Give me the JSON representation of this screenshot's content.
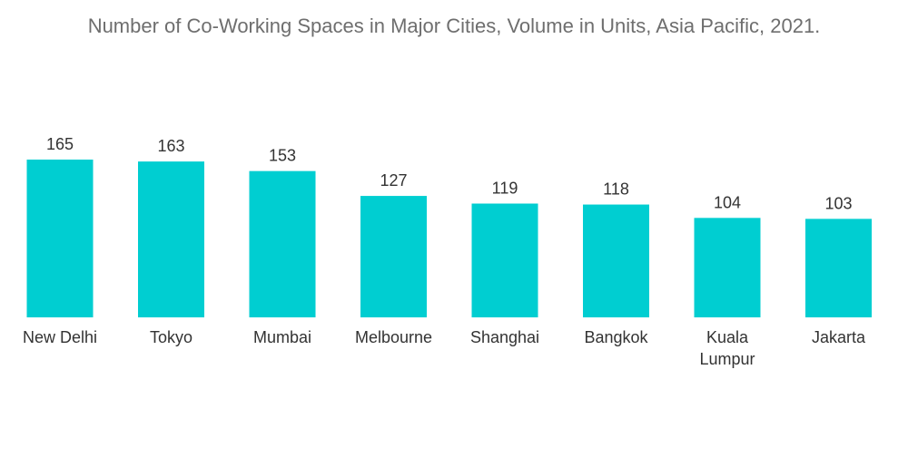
{
  "chart_data": {
    "type": "bar",
    "title": "Number of Co-Working Spaces in Major Cities, Volume in Units, Asia Pacific, 2021.",
    "categories": [
      "New Delhi",
      "Tokyo",
      "Mumbai",
      "Melbourne",
      "Shanghai",
      "Bangkok",
      "Kuala Lumpur",
      "Jakarta"
    ],
    "values": [
      165,
      163,
      153,
      127,
      119,
      118,
      104,
      103
    ],
    "xlabel": "",
    "ylabel": "",
    "ylim": [
      0,
      165
    ],
    "grid": false,
    "legend": "none",
    "bar_color": "#00ced1",
    "label_color": "#333333",
    "title_color": "#6e6e6e"
  }
}
